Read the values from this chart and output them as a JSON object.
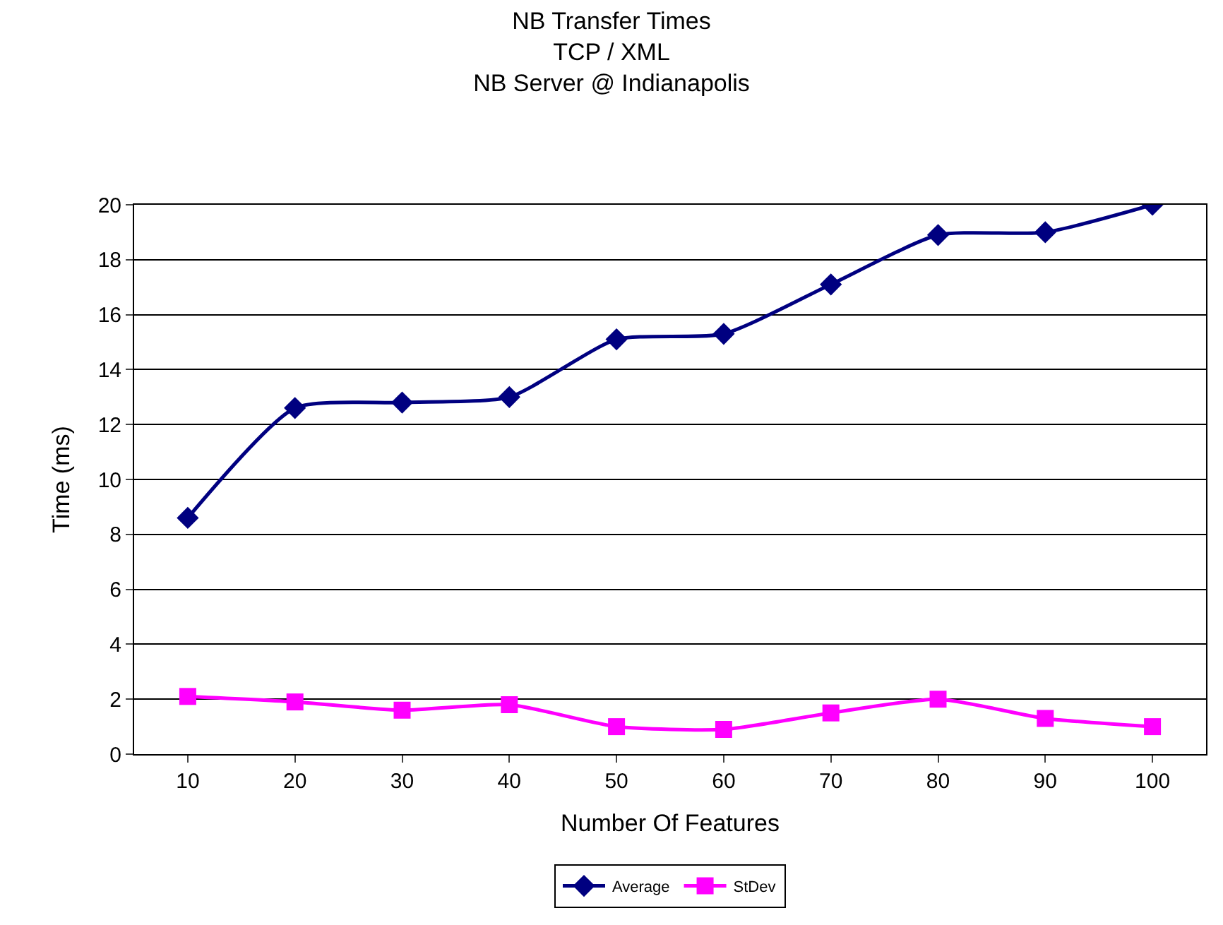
{
  "chart_data": {
    "type": "line",
    "title": "NB Transfer Times\nTCP / XML\nNB Server @ Indianapolis",
    "xlabel": "Number Of Features",
    "ylabel": "Time (ms)",
    "categories": [
      "10",
      "20",
      "30",
      "40",
      "50",
      "60",
      "70",
      "80",
      "90",
      "100"
    ],
    "series": [
      {
        "name": "Average",
        "color": "#000080",
        "marker": "diamond",
        "values": [
          8.6,
          12.6,
          12.8,
          13.0,
          15.1,
          15.3,
          17.1,
          18.9,
          19.0,
          20.0
        ]
      },
      {
        "name": "StDev",
        "color": "#ff00ff",
        "marker": "square",
        "values": [
          2.1,
          1.9,
          1.6,
          1.8,
          1.0,
          0.9,
          1.5,
          2.0,
          1.3,
          1.0
        ]
      }
    ],
    "ylim": [
      0,
      20
    ],
    "yticks": [
      0,
      2,
      4,
      6,
      8,
      10,
      12,
      14,
      16,
      18,
      20
    ],
    "grid": "y",
    "legend": "bottom",
    "line_style": "solid"
  }
}
